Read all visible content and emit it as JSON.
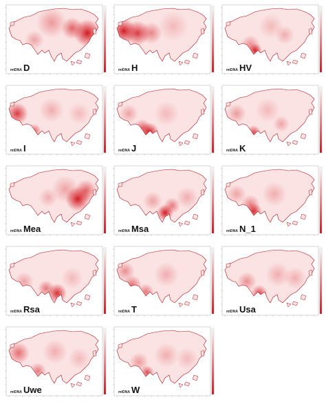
{
  "figure": {
    "prefix": "mtDNA",
    "colors": {
      "hotspot": "#d01018",
      "land_base": "#fbe3e3",
      "coast": "#b01018",
      "axis": "#999999"
    },
    "panels": [
      {
        "id": "D",
        "name": "D"
      },
      {
        "id": "H",
        "name": "H"
      },
      {
        "id": "HV",
        "name": "HV"
      },
      {
        "id": "I",
        "name": "I"
      },
      {
        "id": "J",
        "name": "J"
      },
      {
        "id": "K",
        "name": "K"
      },
      {
        "id": "Mea",
        "name": "Mea"
      },
      {
        "id": "Msa",
        "name": "Msa"
      },
      {
        "id": "N_1",
        "name": "N_1"
      },
      {
        "id": "Rsa",
        "name": "Rsa"
      },
      {
        "id": "T",
        "name": "T"
      },
      {
        "id": "Usa",
        "name": "Usa"
      },
      {
        "id": "Uwe",
        "name": "Uwe"
      },
      {
        "id": "W",
        "name": "W"
      }
    ]
  }
}
